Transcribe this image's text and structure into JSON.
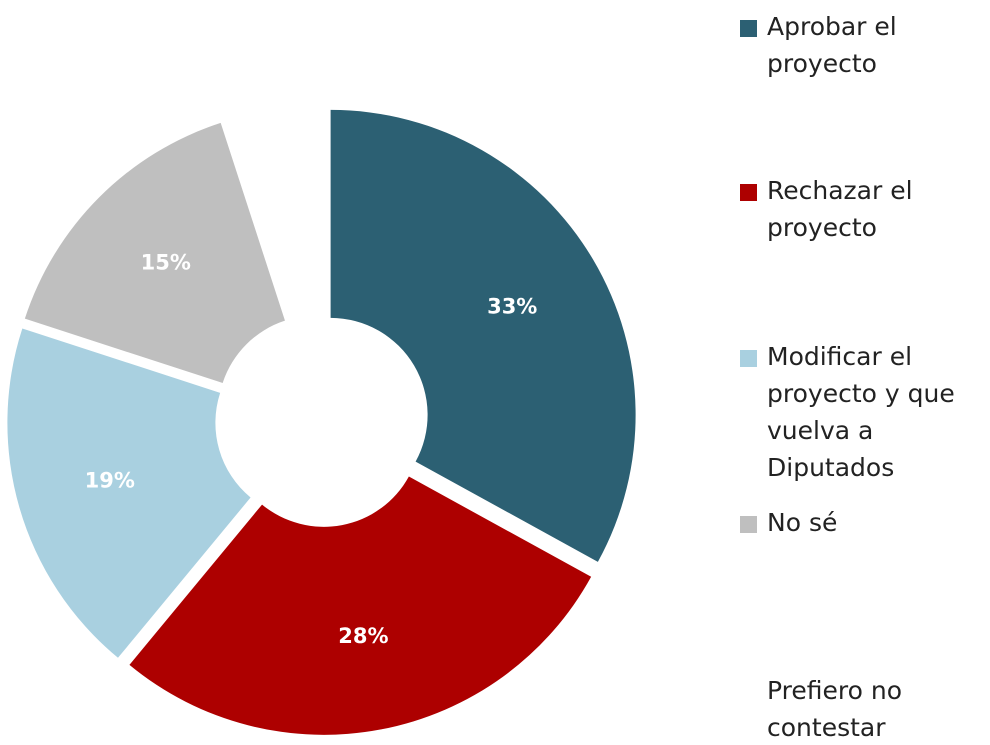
{
  "chart_data": {
    "type": "donut",
    "categories": [
      "Aprobar el proyecto",
      "Rechazar el proyecto",
      "Modificar el proyecto y que vuelva a Diputados",
      "No sé",
      "Prefiero no contestar"
    ],
    "values": [
      33,
      28,
      19,
      15,
      5
    ],
    "value_labels": [
      "33%",
      "28%",
      "19%",
      "15%",
      null
    ],
    "colors": [
      "#2c6073",
      "#ad0000",
      "#a9d0e0",
      "#bfbfbf",
      "#ffffff"
    ],
    "legend": "right"
  }
}
